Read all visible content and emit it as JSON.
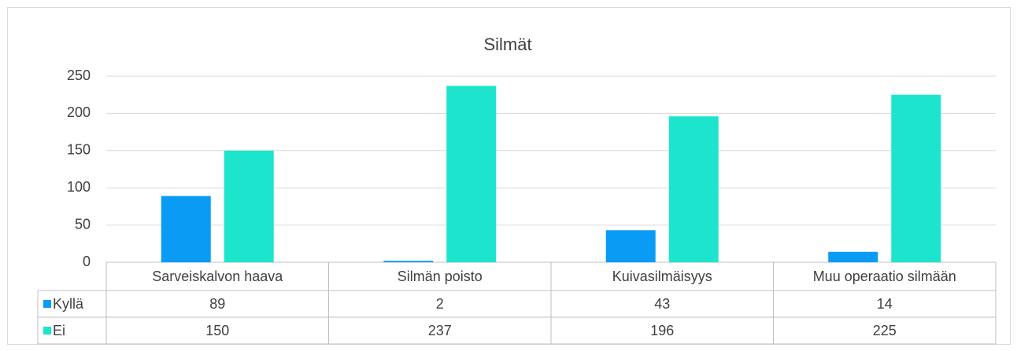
{
  "chart_data": {
    "type": "bar",
    "title": "Silmät",
    "categories": [
      "Sarveiskalvon haava",
      "Silmän poisto",
      "Kuivasilmäisyys",
      "Muu operaatio silmään"
    ],
    "series": [
      {
        "name": "Kyllä",
        "color": "#0a9cf5",
        "values": [
          89,
          2,
          43,
          14
        ]
      },
      {
        "name": "Ei",
        "color": "#1de5cd",
        "values": [
          150,
          237,
          196,
          225
        ]
      }
    ],
    "ylim": [
      0,
      250
    ],
    "yticks": [
      0,
      50,
      100,
      150,
      200,
      250
    ],
    "grid": true
  }
}
